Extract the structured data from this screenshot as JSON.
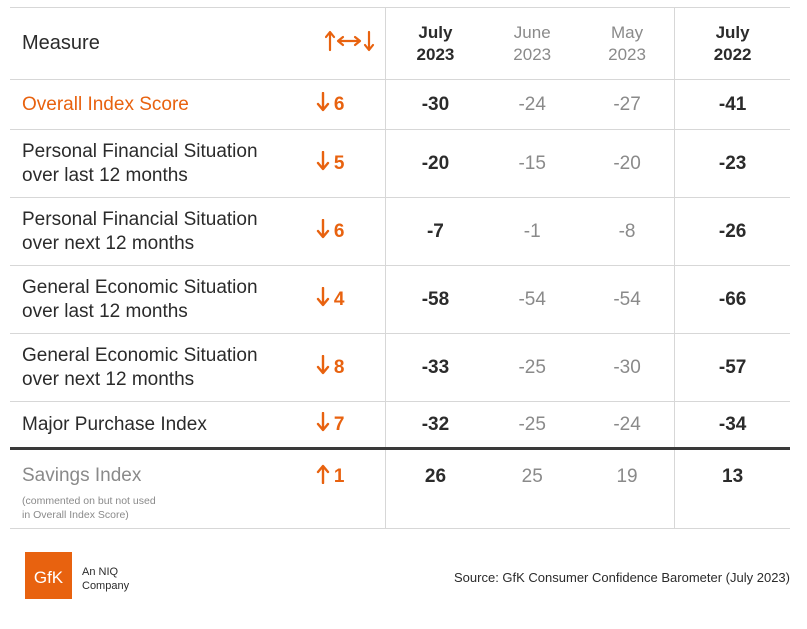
{
  "chart_data": {
    "type": "table",
    "columns": {
      "measure": "Measure",
      "change_icon": "updownarrows-icon",
      "jul23": {
        "month": "July",
        "year": "2023"
      },
      "jun23": {
        "month": "June",
        "year": "2023"
      },
      "may23": {
        "month": "May",
        "year": "2023"
      },
      "jul22": {
        "month": "July",
        "year": "2022"
      }
    },
    "rows": [
      {
        "measure": [
          "Overall Index Score"
        ],
        "dir": "down",
        "change": "6",
        "jul23": "-30",
        "jun23": "-24",
        "may23": "-27",
        "jul22": "-41"
      },
      {
        "measure": [
          "Personal Financial Situation",
          "over last 12 months"
        ],
        "dir": "down",
        "change": "5",
        "jul23": "-20",
        "jun23": "-15",
        "may23": "-20",
        "jul22": "-23"
      },
      {
        "measure": [
          "Personal Financial Situation",
          "over next 12 months"
        ],
        "dir": "down",
        "change": "6",
        "jul23": "-7",
        "jun23": "-1",
        "may23": "-8",
        "jul22": "-26"
      },
      {
        "measure": [
          "General Economic Situation",
          "over last 12 months"
        ],
        "dir": "down",
        "change": "4",
        "jul23": "-58",
        "jun23": "-54",
        "may23": "-54",
        "jul22": "-66"
      },
      {
        "measure": [
          "General Economic Situation",
          "over next 12 months"
        ],
        "dir": "down",
        "change": "8",
        "jul23": "-33",
        "jun23": "-25",
        "may23": "-30",
        "jul22": "-57"
      },
      {
        "measure": [
          "Major Purchase Index"
        ],
        "dir": "down",
        "change": "7",
        "jul23": "-32",
        "jun23": "-25",
        "may23": "-24",
        "jul22": "-34"
      },
      {
        "measure": [
          "Savings Index"
        ],
        "note": [
          "(commented on but not used",
          "in Overall Index Score)"
        ],
        "dir": "up",
        "change": "1",
        "jul23": "26",
        "jun23": "25",
        "may23": "19",
        "jul22": "13"
      }
    ]
  },
  "colors": {
    "accent": "#e8620f",
    "text": "#2b2b2b",
    "muted": "#8a8a8a",
    "rule": "#d7d7d7"
  },
  "footer": {
    "logo_text": "GfK",
    "company_lines": [
      "An NIQ",
      "Company"
    ],
    "source": "Source: GfK Consumer Confidence Barometer (July 2023)"
  }
}
